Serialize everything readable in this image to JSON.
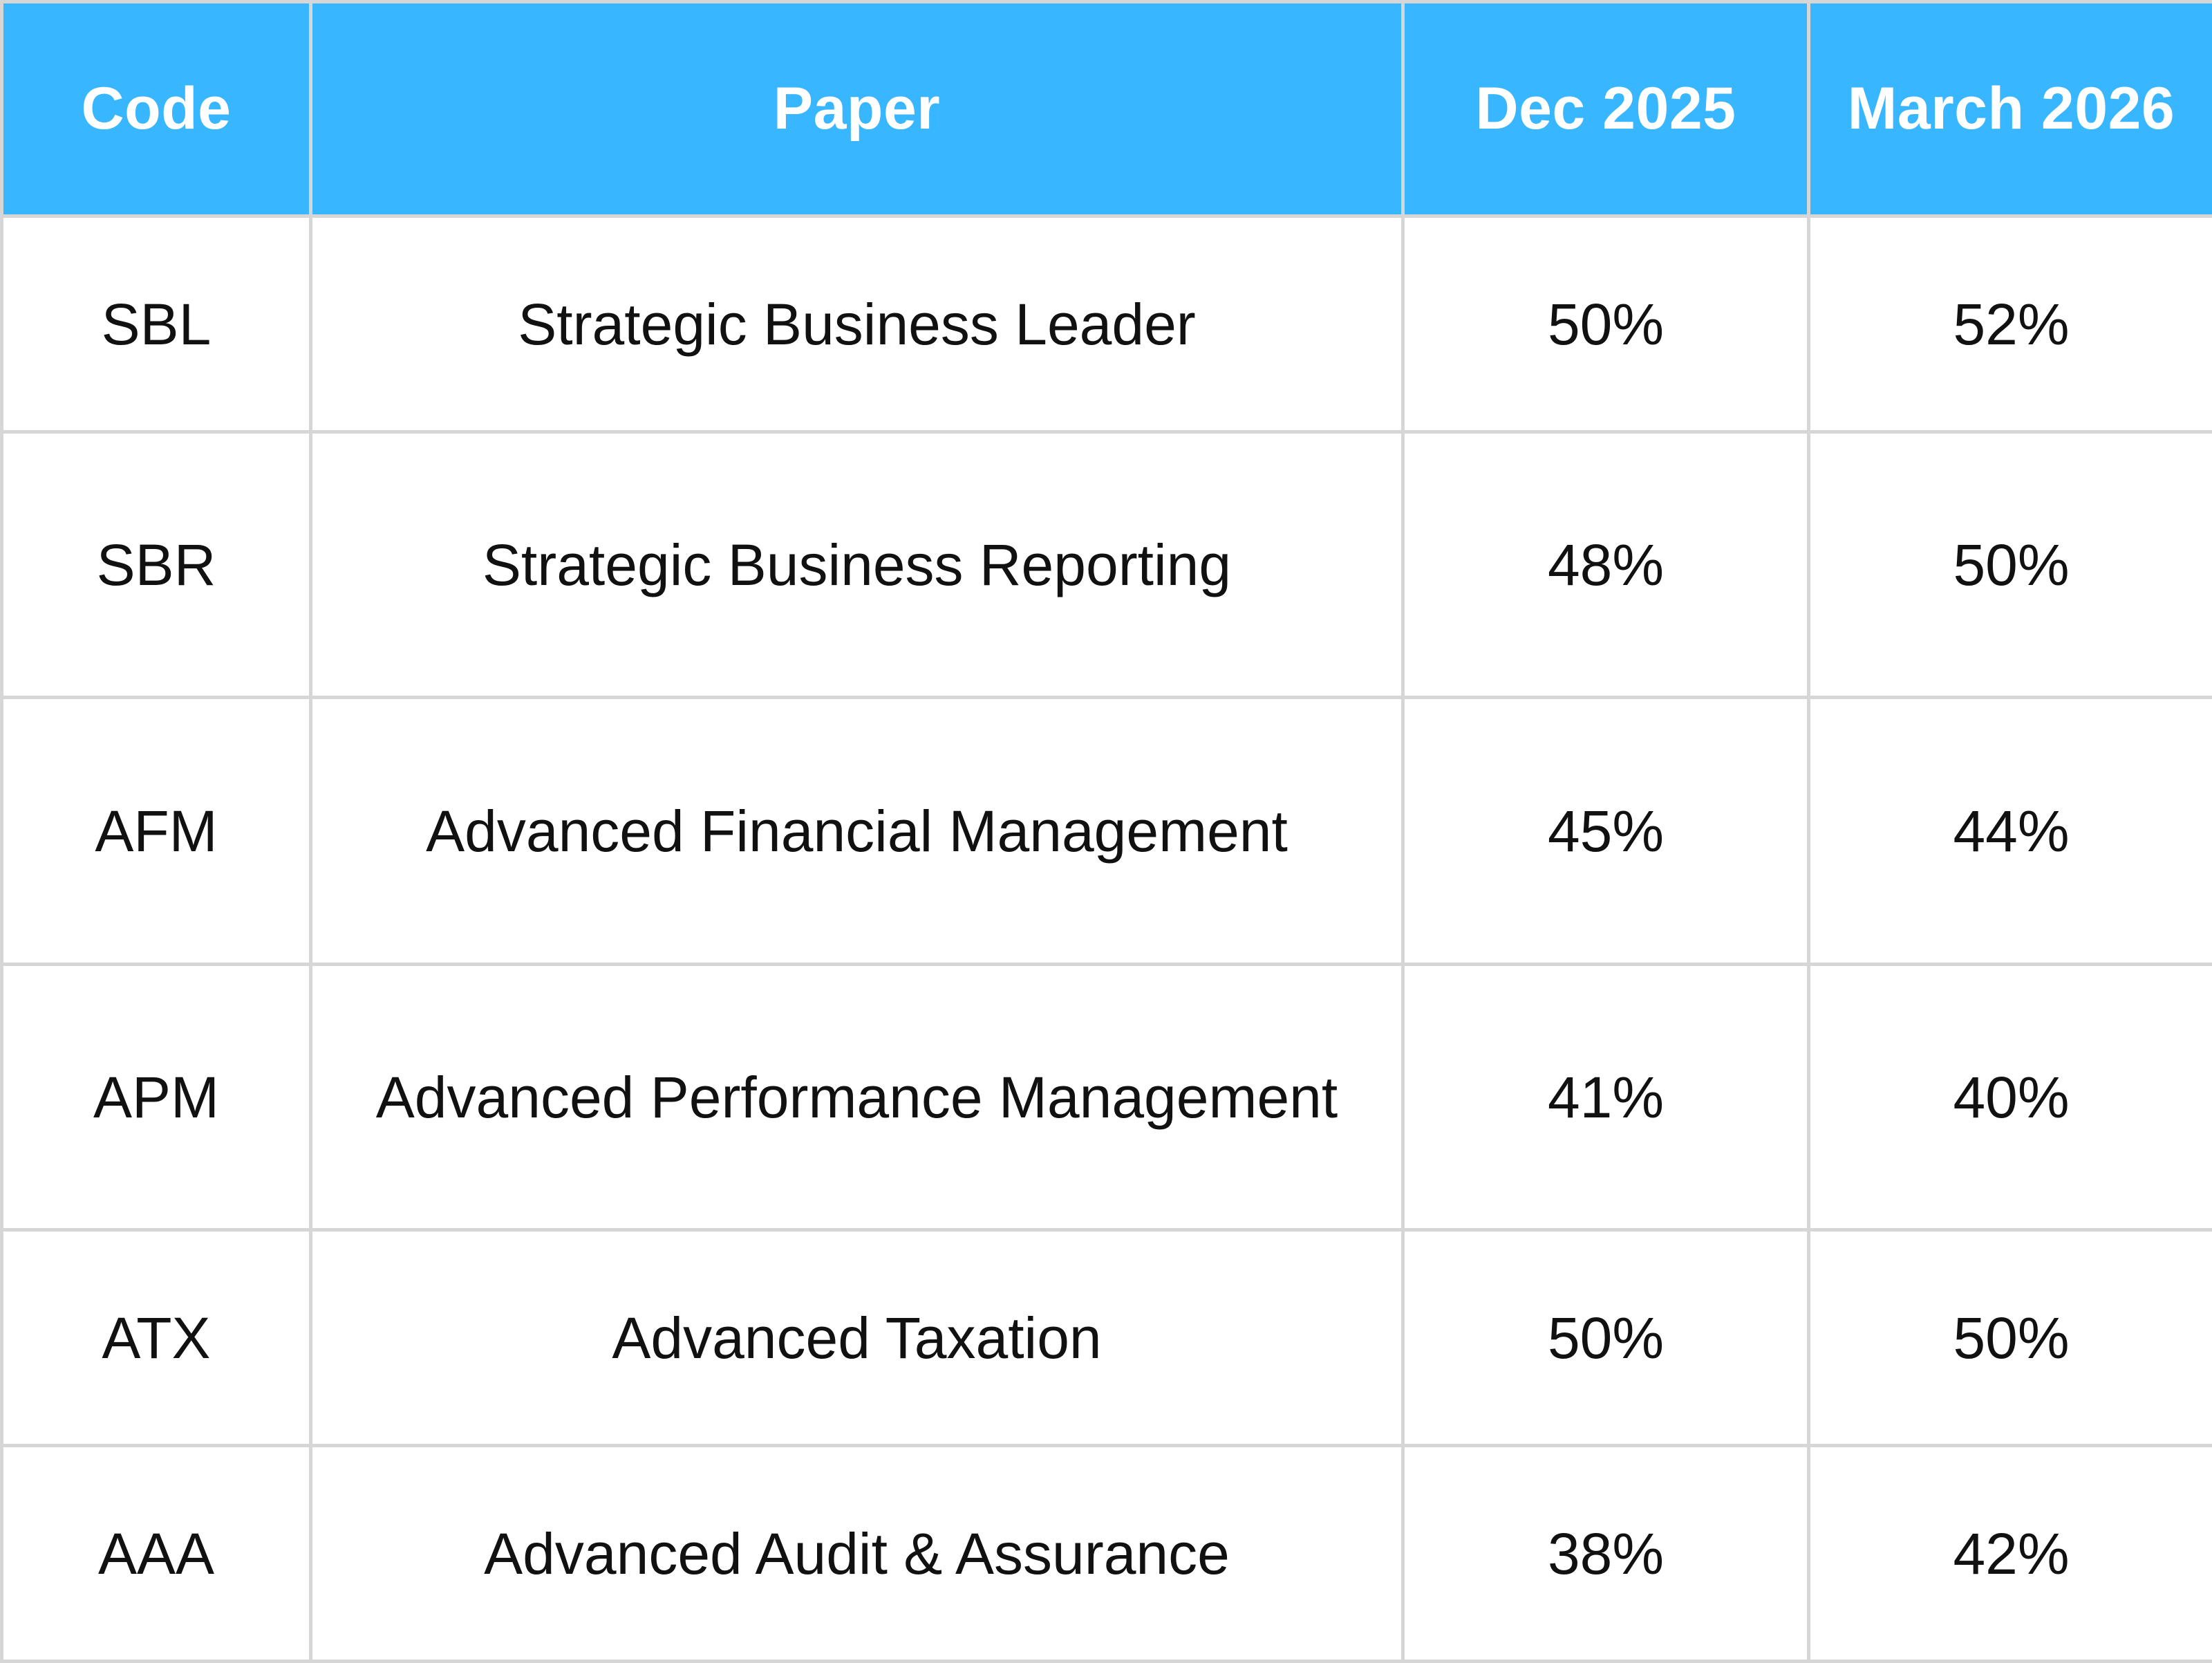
{
  "table": {
    "headers": {
      "code": "Code",
      "paper": "Paper",
      "dec": "Dec 2025",
      "march": "March 2026"
    },
    "rows": [
      {
        "code": "SBL",
        "paper": "Strategic Business Leader",
        "dec": "50%",
        "march": "52%"
      },
      {
        "code": "SBR",
        "paper": "Strategic Business Reporting",
        "dec": "48%",
        "march": "50%"
      },
      {
        "code": "AFM",
        "paper": "Advanced Financial Management",
        "dec": "45%",
        "march": "44%"
      },
      {
        "code": "APM",
        "paper": "Advanced Performance Management",
        "dec": "41%",
        "march": "40%"
      },
      {
        "code": "ATX",
        "paper": "Advanced Taxation",
        "dec": "50%",
        "march": "50%"
      },
      {
        "code": "AAA",
        "paper": "Advanced Audit & Assurance",
        "dec": "38%",
        "march": "42%"
      }
    ]
  },
  "colors": {
    "header_background": "#38b6ff",
    "header_text": "#ffffff",
    "grid_line": "#d6d6d6",
    "body_text": "#111111"
  }
}
